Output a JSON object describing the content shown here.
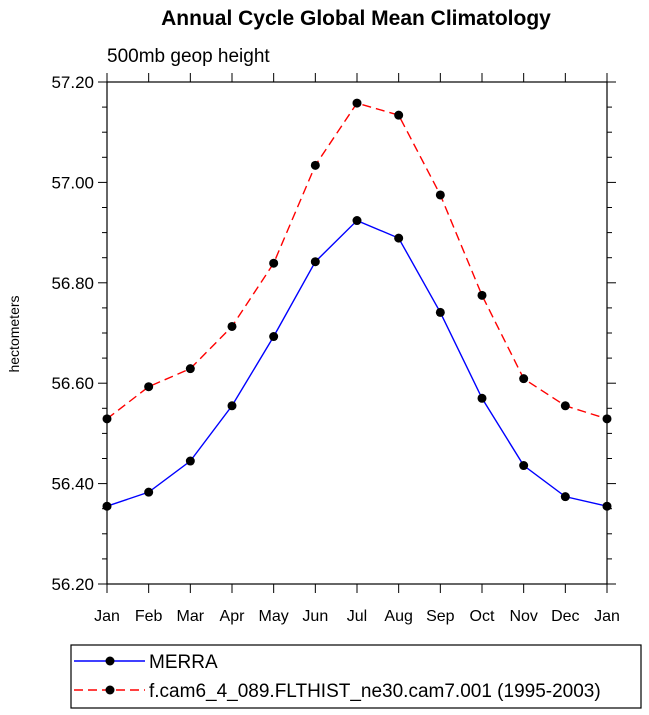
{
  "chart_data": {
    "type": "line",
    "title": "Annual Cycle Global Mean Climatology",
    "subtitle": "500mb geop height",
    "xlabel": "",
    "ylabel": "hectometers",
    "categories": [
      "Jan",
      "Feb",
      "Mar",
      "Apr",
      "May",
      "Jun",
      "Jul",
      "Aug",
      "Sep",
      "Oct",
      "Nov",
      "Dec",
      "Jan"
    ],
    "ylim": [
      56.2,
      57.2
    ],
    "y_ticks": [
      "56.20",
      "56.40",
      "56.60",
      "56.80",
      "57.00",
      "57.20"
    ],
    "grid": false,
    "legend_position": "bottom",
    "series": [
      {
        "name": "MERRA",
        "color": "#0000ff",
        "style": "solid",
        "values": [
          56.355,
          56.383,
          56.445,
          56.555,
          56.693,
          56.842,
          56.924,
          56.889,
          56.741,
          56.57,
          56.436,
          56.374,
          56.355
        ]
      },
      {
        "name": "f.cam6_4_089.FLTHIST_ne30.cam7.001 (1995-2003)",
        "color": "#ff0000",
        "style": "dashed",
        "values": [
          56.529,
          56.593,
          56.629,
          56.713,
          56.839,
          57.034,
          57.158,
          57.134,
          56.975,
          56.775,
          56.609,
          56.555,
          56.529
        ]
      }
    ]
  }
}
